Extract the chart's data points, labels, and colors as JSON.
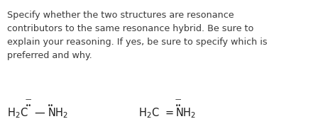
{
  "background_color": "#ffffff",
  "text_lines": [
    "Specify whether the two structures are resonance",
    "contributors to the same resonance hybrid. Be sure to",
    "explain your reasoning. If yes, be sure to specify which is",
    "preferred and why."
  ],
  "text_color": "#3a3a3a",
  "text_fontsize": 9.2,
  "formula_color": "#1a1a1a",
  "formula_fontsize": 10.5
}
